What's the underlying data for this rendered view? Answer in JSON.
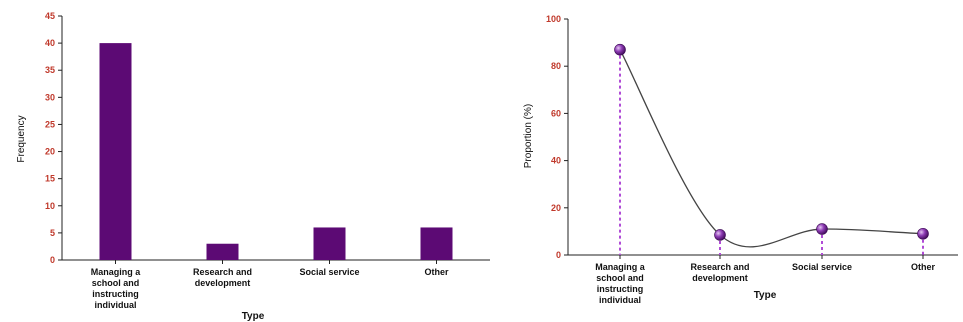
{
  "chart_data": [
    {
      "type": "bar",
      "categories": [
        "Managing a school and instructing individual",
        "Research and development",
        "Social service",
        "Other"
      ],
      "category_lines": [
        [
          "Managing a",
          "school and",
          "instructing",
          "individual"
        ],
        [
          "Research and",
          "development"
        ],
        [
          "Social service"
        ],
        [
          "Other"
        ]
      ],
      "values": [
        40,
        3,
        6,
        6
      ],
      "xlabel": "Type",
      "ylabel": "Frequency",
      "ylim": [
        0,
        45
      ],
      "yticks": [
        "0",
        "5",
        "10",
        "15",
        "20",
        "25",
        "30",
        "35",
        "40",
        "45"
      ],
      "grid": false,
      "bar_color": "#5c0a74",
      "tick_label_color": "#c0392b"
    },
    {
      "type": "line",
      "categories": [
        "Managing a school and instructing individual",
        "Research and development",
        "Social service",
        "Other"
      ],
      "category_lines": [
        [
          "Managing a",
          "school and",
          "instructing",
          "individual"
        ],
        [
          "Research and",
          "development"
        ],
        [
          "Social service"
        ],
        [
          "Other"
        ]
      ],
      "values": [
        87,
        8.5,
        11,
        9
      ],
      "xlabel": "Type",
      "ylabel": "Proportion (%)",
      "ylim": [
        0,
        100
      ],
      "yticks": [
        "0",
        "20",
        "40",
        "60",
        "80",
        "100"
      ],
      "grid": false,
      "smooth": true,
      "drop_lines": true,
      "marker_color": "#6a1b9a",
      "drop_line_color": "#b04cd6",
      "line_color": "#444444",
      "tick_label_color": "#c0392b"
    }
  ]
}
